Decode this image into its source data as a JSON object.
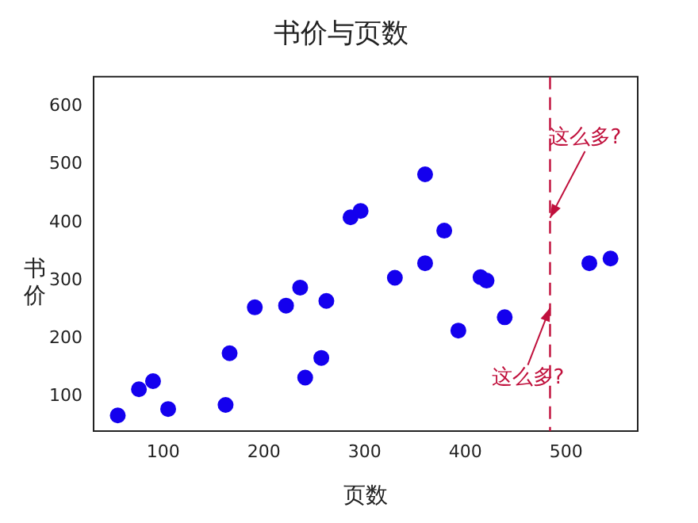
{
  "chart_data": {
    "type": "scatter",
    "title": "书价与页数",
    "xlabel": "页数",
    "ylabel": "书价",
    "x": [
      55,
      76,
      90,
      105,
      162,
      166,
      191,
      222,
      236,
      241,
      257,
      262,
      286,
      296,
      360,
      379,
      360,
      330,
      415,
      421,
      439,
      393,
      523,
      544
    ],
    "values": [
      68,
      113,
      127,
      79,
      86,
      175,
      254,
      257,
      288,
      133,
      167,
      265,
      409,
      420,
      483,
      386,
      330,
      305,
      306,
      300,
      237,
      214,
      330,
      338
    ],
    "color": "#1400ee",
    "marker": "circle",
    "xlim": [
      31,
      571
    ],
    "xticks": [
      100,
      200,
      300,
      400,
      500
    ],
    "ylim": [
      41,
      651
    ],
    "yticks": [
      100,
      200,
      300,
      400,
      500,
      600
    ],
    "grid": false,
    "legend": false,
    "ref_lines": [
      {
        "axis": "x",
        "value": 484,
        "color": "#c0103c",
        "line_style": "dashed"
      }
    ],
    "annotations": [
      {
        "text": "这么多?",
        "x": 484,
        "y": 408
      },
      {
        "text": "这么多?",
        "x": 484,
        "y": 253
      }
    ]
  }
}
